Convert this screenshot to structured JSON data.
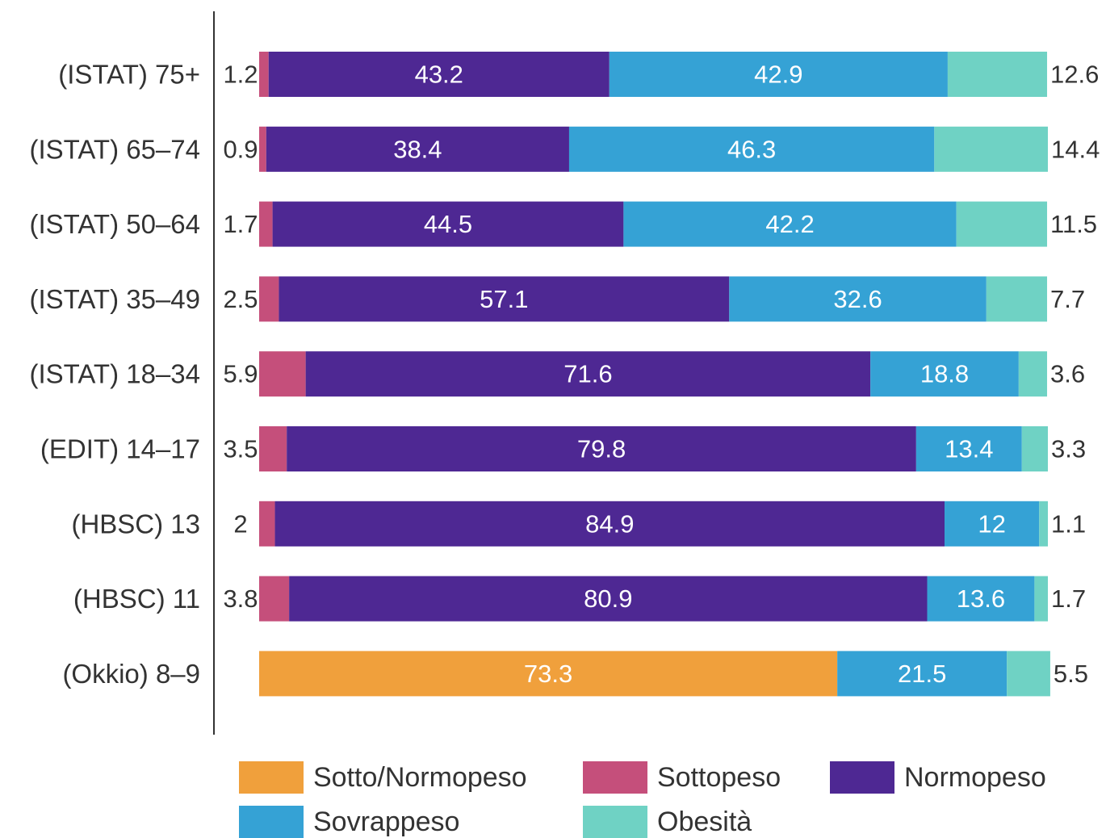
{
  "chart_data": {
    "type": "stacked-bar-horizontal",
    "categories": [
      "(ISTAT) 75+",
      "(ISTAT) 65–74",
      "(ISTAT) 50–64",
      "(ISTAT) 35–49",
      "(ISTAT) 18–34",
      "(EDIT) 14–17",
      "(HBSC) 13",
      "(HBSC) 11",
      "(Okkio) 8–9"
    ],
    "series": [
      {
        "name": "Sotto/Normopeso",
        "color": "#f0a03c",
        "values": [
          null,
          null,
          null,
          null,
          null,
          null,
          null,
          null,
          73.3
        ]
      },
      {
        "name": "Sottopeso",
        "color": "#c54f7b",
        "values": [
          1.2,
          0.9,
          1.7,
          2.5,
          5.9,
          3.5,
          2,
          3.8,
          null
        ]
      },
      {
        "name": "Normopeso",
        "color": "#4e2893",
        "values": [
          43.2,
          38.4,
          44.5,
          57.1,
          71.6,
          79.8,
          84.9,
          80.9,
          null
        ]
      },
      {
        "name": "Sovrappeso",
        "color": "#35a2d5",
        "values": [
          42.9,
          46.3,
          42.2,
          32.6,
          18.8,
          13.4,
          12,
          13.6,
          21.5
        ]
      },
      {
        "name": "Obesità",
        "color": "#6fd2c4",
        "values": [
          12.6,
          14.4,
          11.5,
          7.7,
          3.6,
          3.3,
          1.1,
          1.7,
          5.5
        ]
      }
    ]
  }
}
